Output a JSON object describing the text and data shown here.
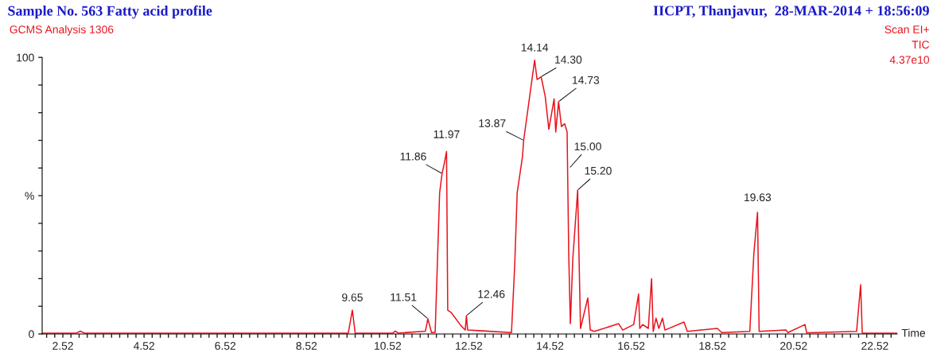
{
  "chart_data": {
    "type": "line",
    "title": "Sample No. 563 Fatty acid profile",
    "subtitle": "GCMS Analysis 1306",
    "annotations": [
      "IICPT, Thanjavur,  28-MAR-2014 + 18:56:09",
      "Scan EI+",
      "TIC",
      "4.37e10",
      {
        "text": "9.65",
        "x": 9.65,
        "y": 8.6
      },
      {
        "text": "11.51",
        "x": 11.51,
        "y": 5.5
      },
      {
        "text": "11.86",
        "x": 11.86,
        "y": 58
      },
      {
        "text": "11.97",
        "x": 11.97,
        "y": 66
      },
      {
        "text": "12.46",
        "x": 12.46,
        "y": 6.6
      },
      {
        "text": "13.87",
        "x": 13.87,
        "y": 70
      },
      {
        "text": "14.14",
        "x": 14.14,
        "y": 99
      },
      {
        "text": "14.30",
        "x": 14.3,
        "y": 93
      },
      {
        "text": "14.73",
        "x": 14.73,
        "y": 84
      },
      {
        "text": "15.00",
        "x": 15.0,
        "y": 60
      },
      {
        "text": "15.20",
        "x": 15.2,
        "y": 52
      },
      {
        "text": "19.63",
        "x": 19.63,
        "y": 44
      }
    ],
    "xlabel": "Time",
    "x": [
      2.01,
      2.85,
      2.95,
      3.05,
      9.55,
      9.65,
      9.72,
      10.65,
      10.71,
      10.78,
      11.45,
      11.51,
      11.6,
      11.69,
      11.8,
      11.86,
      11.92,
      11.97,
      12.0,
      12.08,
      12.33,
      12.43,
      12.46,
      12.49,
      12.86,
      13.57,
      13.65,
      13.71,
      13.84,
      13.87,
      14.0,
      14.14,
      14.2,
      14.3,
      14.4,
      14.49,
      14.62,
      14.66,
      14.73,
      14.8,
      14.88,
      14.94,
      14.98,
      15.02,
      15.08,
      15.2,
      15.27,
      15.45,
      15.51,
      15.61,
      16.21,
      16.31,
      16.58,
      16.7,
      16.73,
      16.8,
      16.94,
      17.02,
      17.06,
      17.13,
      17.2,
      17.29,
      17.35,
      17.82,
      17.9,
      18.64,
      18.75,
      19.44,
      19.54,
      19.63,
      19.67,
      20.33,
      20.38,
      20.8,
      20.84,
      22.07,
      22.17,
      22.21,
      23.07
    ],
    "series": [
      {
        "color": "#e8141e",
        "values": [
          0.3,
          0.3,
          1.0,
          0.3,
          0.3,
          8.6,
          0.3,
          0.3,
          1.0,
          0.3,
          1.0,
          5.5,
          0.5,
          0.6,
          51,
          58,
          62,
          66,
          8.6,
          7.8,
          2.9,
          1.4,
          6.6,
          1.4,
          1.1,
          0.5,
          25,
          51,
          64,
          70,
          84,
          99,
          92,
          93,
          86,
          74,
          85,
          73,
          84,
          75,
          76,
          73,
          29,
          3.7,
          27,
          52,
          2.0,
          13,
          1.4,
          0.9,
          3.7,
          1.4,
          3.4,
          14.4,
          2.0,
          3.4,
          2.0,
          20,
          0.9,
          5.7,
          2.0,
          5.7,
          1.4,
          4.3,
          0.9,
          2.0,
          0.5,
          0.9,
          29,
          44,
          0.9,
          1.4,
          0.5,
          3.4,
          0.4,
          0.9,
          17.8,
          0.3,
          0.3
        ]
      }
    ],
    "xlim": [
      2.01,
      23.07
    ],
    "ylim": [
      0,
      100
    ],
    "xticks": [
      {
        "value": 2.12,
        "label": null
      },
      {
        "value": 2.32,
        "label": null
      },
      {
        "value": 2.52,
        "label": "2.52"
      },
      {
        "value": 2.72,
        "label": null
      },
      {
        "value": 2.92,
        "label": null
      },
      {
        "value": 3.12,
        "label": null
      },
      {
        "value": 3.32,
        "label": null
      },
      {
        "value": 3.52,
        "label": null
      },
      {
        "value": 3.72,
        "label": null
      },
      {
        "value": 3.92,
        "label": null
      },
      {
        "value": 4.12,
        "label": null
      },
      {
        "value": 4.32,
        "label": null
      },
      {
        "value": 4.52,
        "label": "4.52"
      },
      {
        "value": 4.72,
        "label": null
      },
      {
        "value": 4.92,
        "label": null
      },
      {
        "value": 5.12,
        "label": null
      },
      {
        "value": 5.32,
        "label": null
      },
      {
        "value": 5.52,
        "label": null
      },
      {
        "value": 5.72,
        "label": null
      },
      {
        "value": 5.92,
        "label": null
      },
      {
        "value": 6.12,
        "label": null
      },
      {
        "value": 6.32,
        "label": null
      },
      {
        "value": 6.52,
        "label": "6.52"
      },
      {
        "value": 6.72,
        "label": null
      },
      {
        "value": 6.92,
        "label": null
      },
      {
        "value": 7.12,
        "label": null
      },
      {
        "value": 7.32,
        "label": null
      },
      {
        "value": 7.52,
        "label": null
      },
      {
        "value": 7.72,
        "label": null
      },
      {
        "value": 7.92,
        "label": null
      },
      {
        "value": 8.12,
        "label": null
      },
      {
        "value": 8.32,
        "label": null
      },
      {
        "value": 8.52,
        "label": "8.52"
      },
      {
        "value": 8.72,
        "label": null
      },
      {
        "value": 8.92,
        "label": null
      },
      {
        "value": 9.12,
        "label": null
      },
      {
        "value": 9.32,
        "label": null
      },
      {
        "value": 9.52,
        "label": null
      },
      {
        "value": 9.72,
        "label": null
      },
      {
        "value": 9.92,
        "label": null
      },
      {
        "value": 10.12,
        "label": null
      },
      {
        "value": 10.32,
        "label": null
      },
      {
        "value": 10.52,
        "label": "10.52"
      },
      {
        "value": 10.72,
        "label": null
      },
      {
        "value": 10.92,
        "label": null
      },
      {
        "value": 11.12,
        "label": null
      },
      {
        "value": 11.32,
        "label": null
      },
      {
        "value": 11.52,
        "label": null
      },
      {
        "value": 11.72,
        "label": null
      },
      {
        "value": 11.92,
        "label": null
      },
      {
        "value": 12.12,
        "label": null
      },
      {
        "value": 12.32,
        "label": null
      },
      {
        "value": 12.52,
        "label": "12.52"
      },
      {
        "value": 12.72,
        "label": null
      },
      {
        "value": 12.92,
        "label": null
      },
      {
        "value": 13.12,
        "label": null
      },
      {
        "value": 13.32,
        "label": null
      },
      {
        "value": 13.52,
        "label": null
      },
      {
        "value": 13.72,
        "label": null
      },
      {
        "value": 13.92,
        "label": null
      },
      {
        "value": 14.12,
        "label": null
      },
      {
        "value": 14.32,
        "label": null
      },
      {
        "value": 14.52,
        "label": "14.52"
      },
      {
        "value": 14.72,
        "label": null
      },
      {
        "value": 14.92,
        "label": null
      },
      {
        "value": 15.12,
        "label": null
      },
      {
        "value": 15.32,
        "label": null
      },
      {
        "value": 15.52,
        "label": null
      },
      {
        "value": 15.72,
        "label": null
      },
      {
        "value": 15.92,
        "label": null
      },
      {
        "value": 16.12,
        "label": null
      },
      {
        "value": 16.32,
        "label": null
      },
      {
        "value": 16.52,
        "label": "16.52"
      },
      {
        "value": 16.72,
        "label": null
      },
      {
        "value": 16.92,
        "label": null
      },
      {
        "value": 17.12,
        "label": null
      },
      {
        "value": 17.32,
        "label": null
      },
      {
        "value": 17.52,
        "label": null
      },
      {
        "value": 17.72,
        "label": null
      },
      {
        "value": 17.92,
        "label": null
      },
      {
        "value": 18.12,
        "label": null
      },
      {
        "value": 18.32,
        "label": null
      },
      {
        "value": 18.52,
        "label": "18.52"
      },
      {
        "value": 18.72,
        "label": null
      },
      {
        "value": 18.92,
        "label": null
      },
      {
        "value": 19.12,
        "label": null
      },
      {
        "value": 19.32,
        "label": null
      },
      {
        "value": 19.52,
        "label": null
      },
      {
        "value": 19.72,
        "label": null
      },
      {
        "value": 19.92,
        "label": null
      },
      {
        "value": 20.12,
        "label": null
      },
      {
        "value": 20.32,
        "label": null
      },
      {
        "value": 20.52,
        "label": "20.52"
      },
      {
        "value": 20.72,
        "label": null
      },
      {
        "value": 20.92,
        "label": null
      },
      {
        "value": 21.12,
        "label": null
      },
      {
        "value": 21.32,
        "label": null
      },
      {
        "value": 21.52,
        "label": null
      },
      {
        "value": 21.72,
        "label": null
      },
      {
        "value": 21.92,
        "label": null
      },
      {
        "value": 22.12,
        "label": null
      },
      {
        "value": 22.32,
        "label": null
      },
      {
        "value": 22.52,
        "label": "22.52"
      },
      {
        "value": 22.72,
        "label": null
      },
      {
        "value": 22.92,
        "label": null
      }
    ],
    "yticks": [
      0,
      {
        "value": 10,
        "label": null
      },
      {
        "value": 20,
        "label": null
      },
      {
        "value": 30,
        "label": null
      },
      {
        "value": 40,
        "label": null
      },
      {
        "value": 50,
        "label": "%"
      },
      {
        "value": 60,
        "label": null
      },
      {
        "value": 70,
        "label": null
      },
      {
        "value": 80,
        "label": null
      },
      {
        "value": 90,
        "label": null
      },
      100
    ],
    "grid": false,
    "marker": "none",
    "line_style": "solid"
  }
}
